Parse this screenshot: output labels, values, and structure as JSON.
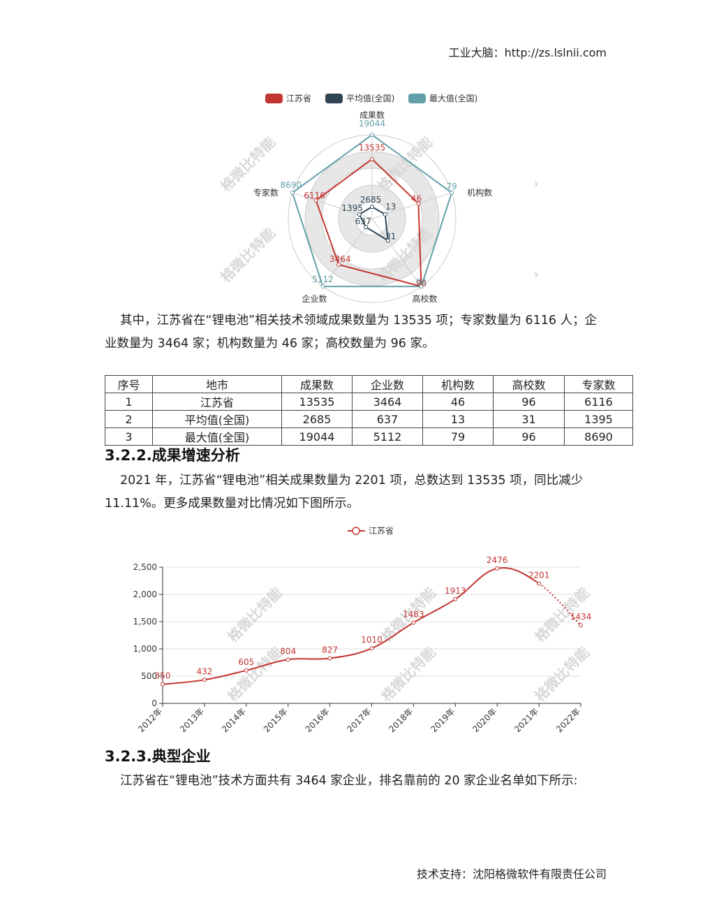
{
  "header": {
    "text": "工业大脑：http://zs.lslnii.com"
  },
  "footer": {
    "text": "技术支持：沈阳格微软件有限责任公司"
  },
  "watermark": "格微比特能",
  "radar": {
    "legend": [
      "江苏省",
      "平均值(全国)",
      "最大值(全国)"
    ],
    "colors": {
      "江苏省": "#c23531",
      "平均值(全国)": "#2f4554",
      "最大值(全国)": "#61a0a8"
    },
    "indicators": [
      "成果数",
      "机构数",
      "高校数",
      "企业数",
      "专家数"
    ]
  },
  "paragraph1": "其中，江苏省在“锂电池”相关技术领域成果数量为 13535 项；专家数量为 6116 人；企业数量为 3464 家；机构数量为 46 家；高校数量为 96 家。",
  "table": {
    "headers": [
      "序号",
      "地市",
      "成果数",
      "企业数",
      "机构数",
      "高校数",
      "专家数"
    ],
    "rows": [
      [
        "1",
        "江苏省",
        "13535",
        "3464",
        "46",
        "96",
        "6116"
      ],
      [
        "2",
        "平均值(全国)",
        "2685",
        "637",
        "13",
        "31",
        "1395"
      ],
      [
        "3",
        "最大值(全国)",
        "19044",
        "5112",
        "79",
        "96",
        "8690"
      ]
    ]
  },
  "heading1": "3.2.2.成果增速分析",
  "paragraph2": "2021 年，江苏省“锂电池”相关成果数量为 2201 项，总数达到 13535 项，同比减少 11.11%。更多成果数量对比情况如下图所示。",
  "heading2": "3.2.3.典型企业",
  "paragraph3": "江苏省在“锂电池”技术方面共有 3464 家企业，排名靠前的 20 家企业名单如下所示:",
  "chart_data": [
    {
      "type": "radar",
      "indicators": [
        "成果数",
        "机构数",
        "高校数",
        "企业数",
        "专家数"
      ],
      "series": [
        {
          "name": "江苏省",
          "values": [
            13535,
            46,
            96,
            3464,
            6116
          ]
        },
        {
          "name": "平均值(全国)",
          "values": [
            2685,
            13,
            31,
            637,
            1395
          ]
        },
        {
          "name": "最大值(全国)",
          "values": [
            19044,
            79,
            96,
            5112,
            8690
          ]
        }
      ],
      "legend_position": "top"
    },
    {
      "type": "line",
      "x": [
        "2012年",
        "2013年",
        "2014年",
        "2015年",
        "2016年",
        "2017年",
        "2018年",
        "2019年",
        "2020年",
        "2021年",
        "2022年"
      ],
      "series": [
        {
          "name": "江苏省",
          "values": [
            350,
            432,
            605,
            804,
            827,
            1010,
            1483,
            1913,
            2476,
            2201,
            1434
          ]
        }
      ],
      "ylim": [
        0,
        2500
      ],
      "yticks": [
        "0",
        "500",
        "1,000",
        "1,500",
        "2,000",
        "2,500"
      ],
      "color": "#c23531",
      "grid": true,
      "legend_position": "top"
    }
  ]
}
